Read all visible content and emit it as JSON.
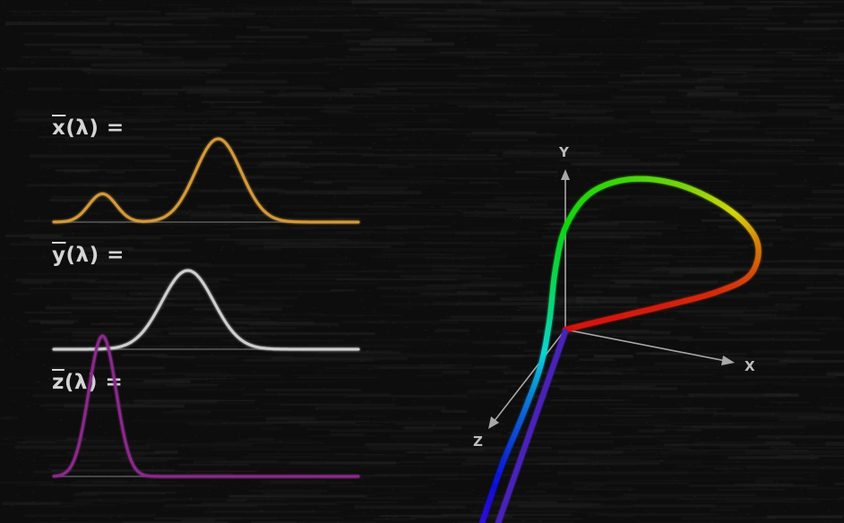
{
  "labels": {
    "x": {
      "symbol": "x",
      "suffix": "(λ) ="
    },
    "y": {
      "symbol": "y",
      "suffix": "(λ) ="
    },
    "z": {
      "symbol": "z",
      "suffix": "(λ) ="
    }
  },
  "axes": {
    "x": "X",
    "y": "Y",
    "z": "Z"
  },
  "colors": {
    "background": "#0d0d0d",
    "x_curve": "#d49a3a",
    "y_curve": "#cfcfcf",
    "z_curve": "#8a2a8a",
    "baseline": "#5a5a5a",
    "axis": "#a8a8a8"
  },
  "chart_data": [
    {
      "type": "line",
      "series": [
        {
          "symbol": "x̄(λ)"
        }
      ],
      "peaks": [
        {
          "position": 0.16,
          "height": 0.34
        },
        {
          "position": 0.54,
          "height": 1.0
        }
      ]
    },
    {
      "type": "line",
      "series": [
        {
          "symbol": "ȳ(λ)"
        }
      ],
      "peaks": [
        {
          "position": 0.44,
          "height": 1.0
        }
      ]
    },
    {
      "type": "line",
      "series": [
        {
          "symbol": "z̄(λ)"
        }
      ],
      "peaks": [
        {
          "position": 0.16,
          "height": 1.0
        }
      ]
    }
  ]
}
